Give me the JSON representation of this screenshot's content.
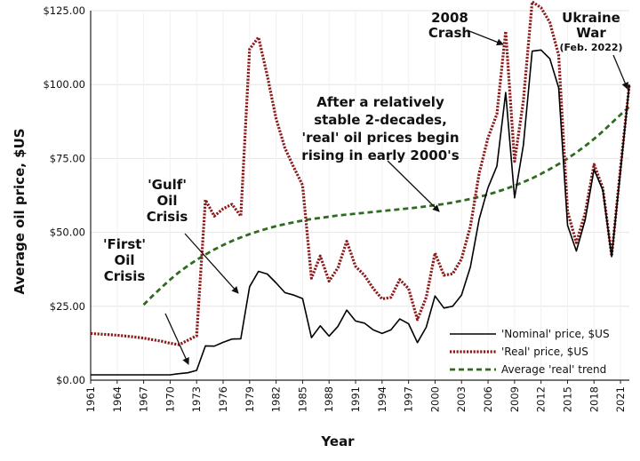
{
  "chart_data": {
    "type": "line",
    "xlabel": "Year",
    "ylabel": "Average oil price, $US",
    "xlim": [
      1961,
      2022
    ],
    "ylim": [
      0,
      125
    ],
    "x_ticks": [
      "1961",
      "1964",
      "1967",
      "1970",
      "1973",
      "1976",
      "1979",
      "1982",
      "1985",
      "1988",
      "1991",
      "1994",
      "1997",
      "2000",
      "2003",
      "2006",
      "2009",
      "2012",
      "2015",
      "2018",
      "2021"
    ],
    "y_ticks": [
      "$0.00",
      "$25.00",
      "$50.00",
      "$75.00",
      "$100.00",
      "$125.00"
    ],
    "grid": true,
    "legend_position": "bottom-right",
    "years": [
      1961,
      1962,
      1963,
      1964,
      1965,
      1966,
      1967,
      1968,
      1969,
      1970,
      1971,
      1972,
      1973,
      1974,
      1975,
      1976,
      1977,
      1978,
      1979,
      1980,
      1981,
      1982,
      1983,
      1984,
      1985,
      1986,
      1987,
      1988,
      1989,
      1990,
      1991,
      1992,
      1993,
      1994,
      1995,
      1996,
      1997,
      1998,
      1999,
      2000,
      2001,
      2002,
      2003,
      2004,
      2005,
      2006,
      2007,
      2008,
      2009,
      2010,
      2011,
      2012,
      2013,
      2014,
      2015,
      2016,
      2017,
      2018,
      2019,
      2020,
      2021,
      2022
    ],
    "series": [
      {
        "name": "'Nominal' price, $US",
        "color": "#000000",
        "style": "solid",
        "values": [
          1.8,
          1.8,
          1.8,
          1.8,
          1.8,
          1.8,
          1.8,
          1.8,
          1.8,
          1.8,
          2.2,
          2.5,
          3.3,
          11.6,
          11.5,
          12.8,
          13.9,
          14.0,
          31.6,
          36.8,
          35.9,
          32.9,
          29.6,
          28.8,
          27.6,
          14.4,
          18.4,
          14.9,
          18.2,
          23.7,
          20.0,
          19.3,
          17.0,
          15.8,
          17.0,
          20.7,
          19.1,
          12.7,
          17.9,
          28.5,
          24.4,
          25.0,
          28.8,
          38.3,
          54.5,
          65.1,
          72.4,
          97.3,
          61.7,
          79.5,
          111.3,
          111.7,
          108.7,
          98.9,
          52.4,
          43.7,
          54.2,
          71.3,
          64.2,
          41.8,
          70.9,
          100.0
        ]
      },
      {
        "name": "'Real' price, $US",
        "color": "#8b1a1a",
        "style": "dotted",
        "values": [
          15.8,
          15.6,
          15.4,
          15.2,
          14.9,
          14.6,
          14.2,
          13.7,
          13.2,
          12.5,
          12.0,
          13.5,
          15.0,
          61.0,
          55.5,
          58.0,
          59.5,
          55.5,
          112.0,
          116.0,
          103.0,
          88.5,
          78.5,
          72.0,
          66.0,
          34.5,
          42.0,
          33.5,
          38.0,
          47.0,
          38.5,
          35.5,
          31.0,
          27.5,
          28.0,
          34.0,
          31.0,
          20.5,
          28.0,
          43.0,
          35.5,
          36.0,
          41.0,
          52.0,
          70.0,
          82.0,
          90.0,
          118.0,
          74.0,
          94.5,
          128.0,
          126.0,
          121.0,
          110.0,
          57.0,
          46.5,
          56.5,
          73.0,
          65.0,
          42.0,
          72.0,
          100.0
        ]
      },
      {
        "name": "Average 'real' trend",
        "color": "#2e6b1e",
        "style": "dashed",
        "start_year": 1967,
        "values": [
          25.5,
          28.5,
          31.3,
          34.0,
          36.5,
          38.7,
          40.7,
          42.5,
          44.2,
          45.7,
          47.1,
          48.3,
          49.4,
          50.4,
          51.3,
          52.1,
          52.8,
          53.4,
          54.0,
          54.5,
          54.9,
          55.3,
          55.7,
          56.0,
          56.3,
          56.6,
          56.9,
          57.2,
          57.5,
          57.8,
          58.1,
          58.4,
          58.8,
          59.2,
          59.6,
          60.1,
          60.7,
          61.3,
          62.0,
          62.8,
          63.7,
          64.7,
          65.8,
          67.0,
          68.3,
          69.8,
          71.4,
          73.1,
          75.0,
          77.0,
          79.2,
          81.6,
          84.2,
          87.0,
          89.8,
          92.5
        ]
      }
    ],
    "annotations": [
      {
        "lines": [
          "'First'",
          "Oil",
          "Crisis"
        ]
      },
      {
        "lines": [
          "'Gulf'",
          "Oil",
          "Crisis"
        ]
      },
      {
        "lines": [
          "After a relatively",
          "stable 2-decades,",
          "'real' oil prices begin",
          "rising in early 2000's"
        ]
      },
      {
        "lines": [
          "2008",
          "Crash"
        ]
      },
      {
        "lines": [
          "Ukraine",
          "War"
        ],
        "note": "(Feb. 2022)"
      }
    ]
  }
}
